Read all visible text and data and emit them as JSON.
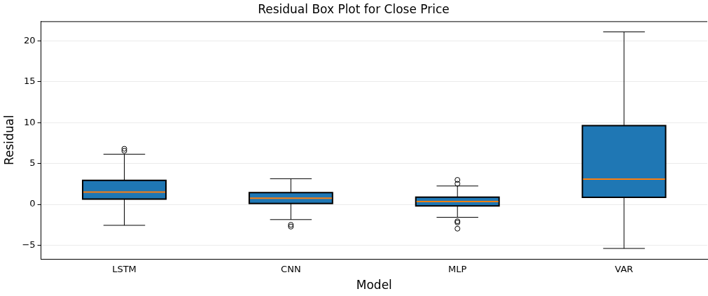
{
  "chart_data": {
    "type": "box",
    "title": "Residual Box Plot for Close Price",
    "xlabel": "Model",
    "ylabel": "Residual",
    "categories": [
      "LSTM",
      "CNN",
      "MLP",
      "VAR"
    ],
    "boxes": [
      {
        "low": -2.56,
        "q1": 0.64,
        "median": 1.5,
        "q3": 2.94,
        "high": 6.14,
        "outliers": [
          6.55,
          6.8
        ]
      },
      {
        "low": -1.86,
        "q1": 0.11,
        "median": 0.75,
        "q3": 1.44,
        "high": 3.14,
        "outliers": [
          -2.5,
          -2.72
        ]
      },
      {
        "low": -1.58,
        "q1": -0.19,
        "median": 0.36,
        "q3": 0.89,
        "high": 2.25,
        "outliers": [
          2.53,
          3.0,
          -2.06,
          -2.22,
          -2.97
        ]
      },
      {
        "low": -5.39,
        "q1": 0.86,
        "median": 3.08,
        "q3": 9.64,
        "high": 21.1
      }
    ],
    "color": "#1f77b4",
    "ylim": [
      -6.67,
      22.4
    ],
    "yticks": [
      {
        "value": -5,
        "label": "−5"
      },
      0,
      5,
      10,
      15,
      20
    ],
    "grid": "y"
  }
}
